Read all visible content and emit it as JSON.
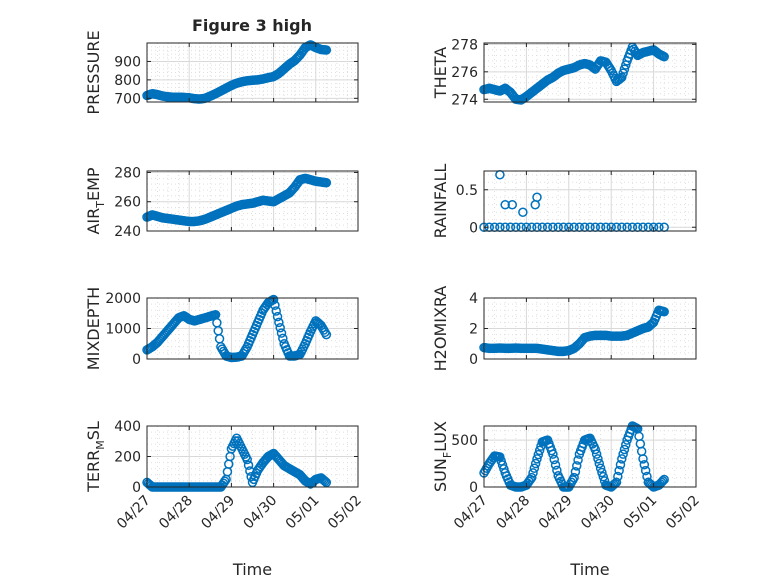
{
  "figure": {
    "title": "Figure 3 high"
  },
  "chart_data": [
    {
      "type": "scatter",
      "ylabel": "PRESSURE",
      "ylim": [
        680,
        1000
      ],
      "yticks": [
        700,
        800,
        900
      ],
      "xlim": [
        "04/27",
        "05/02"
      ],
      "grid": true,
      "marker": "open-circle",
      "color": "#0072BD",
      "x_points": [
        "04/27 00:00",
        "04/27 03:00",
        "04/27 06:00",
        "04/27 09:00",
        "04/27 12:00",
        "04/27 15:00",
        "04/27 18:00",
        "04/27 21:00",
        "04/28 00:00",
        "04/28 03:00",
        "04/28 06:00",
        "04/28 09:00",
        "04/28 12:00",
        "04/28 15:00",
        "04/28 18:00",
        "04/28 21:00",
        "04/29 00:00",
        "04/29 03:00",
        "04/29 06:00",
        "04/29 09:00",
        "04/29 12:00",
        "04/29 15:00",
        "04/29 18:00",
        "04/29 21:00",
        "04/30 00:00",
        "04/30 03:00",
        "04/30 06:00",
        "04/30 09:00",
        "04/30 12:00",
        "04/30 15:00",
        "04/30 18:00",
        "04/30 21:00",
        "05/01 00:00",
        "05/01 03:00",
        "05/01 06:00"
      ],
      "y": [
        715,
        725,
        720,
        712,
        708,
        706,
        706,
        705,
        703,
        698,
        696,
        700,
        712,
        725,
        740,
        755,
        770,
        782,
        790,
        795,
        798,
        800,
        805,
        812,
        818,
        835,
        860,
        885,
        905,
        935,
        975,
        990,
        975,
        965,
        962
      ]
    },
    {
      "type": "scatter",
      "ylabel": "THETA",
      "ylim": [
        273.8,
        278.1
      ],
      "yticks": [
        274,
        276,
        278
      ],
      "xlim": [
        "04/27",
        "05/02"
      ],
      "grid": true,
      "marker": "open-circle",
      "color": "#0072BD",
      "x_points": [
        "04/27 00:00",
        "04/27 03:00",
        "04/27 06:00",
        "04/27 09:00",
        "04/27 12:00",
        "04/27 15:00",
        "04/27 18:00",
        "04/27 21:00",
        "04/28 00:00",
        "04/28 03:00",
        "04/28 06:00",
        "04/28 09:00",
        "04/28 12:00",
        "04/28 15:00",
        "04/28 18:00",
        "04/28 21:00",
        "04/29 00:00",
        "04/29 03:00",
        "04/29 06:00",
        "04/29 09:00",
        "04/29 12:00",
        "04/29 15:00",
        "04/29 18:00",
        "04/29 21:00",
        "04/30 00:00",
        "04/30 03:00",
        "04/30 06:00",
        "04/30 09:00",
        "04/30 12:00",
        "04/30 15:00",
        "04/30 18:00",
        "04/30 21:00",
        "05/01 00:00",
        "05/01 03:00",
        "05/01 06:00"
      ],
      "y": [
        274.7,
        274.8,
        274.7,
        274.6,
        274.8,
        274.5,
        274.0,
        273.95,
        274.2,
        274.5,
        274.8,
        275.1,
        275.4,
        275.6,
        275.9,
        276.1,
        276.2,
        276.3,
        276.5,
        276.6,
        276.5,
        276.2,
        276.8,
        276.7,
        276.1,
        275.3,
        275.6,
        276.8,
        277.8,
        277.2,
        277.4,
        277.5,
        277.6,
        277.3,
        277.1
      ]
    },
    {
      "type": "scatter",
      "ylabel": "AIR_TEMP",
      "ylim": [
        240,
        281
      ],
      "yticks": [
        240,
        260,
        280
      ],
      "xlim": [
        "04/27",
        "05/02"
      ],
      "grid": true,
      "marker": "open-circle",
      "color": "#0072BD",
      "x_points": [
        "04/27 00:00",
        "04/27 03:00",
        "04/27 06:00",
        "04/27 09:00",
        "04/27 12:00",
        "04/27 15:00",
        "04/27 18:00",
        "04/27 21:00",
        "04/28 00:00",
        "04/28 03:00",
        "04/28 06:00",
        "04/28 09:00",
        "04/28 12:00",
        "04/28 15:00",
        "04/28 18:00",
        "04/28 21:00",
        "04/29 00:00",
        "04/29 03:00",
        "04/29 06:00",
        "04/29 09:00",
        "04/29 12:00",
        "04/29 15:00",
        "04/29 18:00",
        "04/29 21:00",
        "04/30 00:00",
        "04/30 03:00",
        "04/30 06:00",
        "04/30 09:00",
        "04/30 12:00",
        "04/30 15:00",
        "04/30 18:00",
        "04/30 21:00",
        "05/01 00:00",
        "05/01 03:00",
        "05/01 06:00"
      ],
      "y": [
        249.5,
        251,
        250,
        249,
        248.5,
        248,
        247.5,
        247,
        246.5,
        246.5,
        247,
        248,
        249.5,
        251,
        252.5,
        254,
        255.5,
        257,
        258,
        258.5,
        259,
        260,
        261,
        260.5,
        260,
        262,
        264,
        266,
        270,
        275,
        276,
        275,
        274,
        273.5,
        273
      ]
    },
    {
      "type": "scatter",
      "ylabel": "RAINFALL",
      "ylim": [
        -0.05,
        0.75
      ],
      "yticks": [
        0,
        0.5
      ],
      "xlim": [
        "04/27",
        "05/02"
      ],
      "grid": true,
      "marker": "open-circle",
      "color": "#0072BD",
      "x_points": [
        "04/27 00:00",
        "04/27 06:00",
        "04/27 12:00",
        "04/27 18:00",
        "04/28 00:00",
        "04/28 06:00",
        "04/28 12:00",
        "04/28 18:00",
        "04/29 00:00",
        "04/29 06:00",
        "04/29 12:00",
        "04/29 18:00",
        "04/30 00:00",
        "04/30 06:00",
        "04/30 12:00",
        "04/30 18:00",
        "05/01 00:00",
        "05/01 06:00",
        "04/27 09:00",
        "04/27 12:00",
        "04/27 16:00",
        "04/27 22:00",
        "04/28 05:00",
        "04/28 06:00"
      ],
      "y": [
        0,
        0,
        0,
        0,
        0,
        0,
        0,
        0,
        0,
        0,
        0,
        0,
        0,
        0,
        0,
        0,
        0,
        0,
        0.7,
        0.3,
        0.3,
        0.2,
        0.3,
        0.4
      ]
    },
    {
      "type": "scatter",
      "ylabel": "MIXDEPTH",
      "ylim": [
        0,
        2000
      ],
      "yticks": [
        0,
        1000,
        2000
      ],
      "xlim": [
        "04/27",
        "05/02"
      ],
      "grid": true,
      "marker": "open-circle",
      "color": "#0072BD",
      "x_points": [
        "04/27 00:00",
        "04/27 03:00",
        "04/27 06:00",
        "04/27 09:00",
        "04/27 12:00",
        "04/27 15:00",
        "04/27 18:00",
        "04/27 21:00",
        "04/28 00:00",
        "04/28 03:00",
        "04/28 06:00",
        "04/28 09:00",
        "04/28 12:00",
        "04/28 15:00",
        "04/28 18:00",
        "04/28 21:00",
        "04/29 00:00",
        "04/29 03:00",
        "04/29 06:00",
        "04/29 09:00",
        "04/29 12:00",
        "04/29 15:00",
        "04/29 18:00",
        "04/29 21:00",
        "04/30 00:00",
        "04/30 03:00",
        "04/30 06:00",
        "04/30 09:00",
        "04/30 12:00",
        "04/30 15:00",
        "04/30 18:00",
        "04/30 21:00",
        "05/01 00:00",
        "05/01 03:00",
        "05/01 06:00"
      ],
      "y": [
        300,
        400,
        550,
        750,
        950,
        1150,
        1350,
        1420,
        1300,
        1250,
        1300,
        1350,
        1400,
        1450,
        400,
        100,
        50,
        60,
        100,
        400,
        800,
        1200,
        1600,
        1850,
        1950,
        1200,
        500,
        100,
        100,
        150,
        500,
        900,
        1250,
        1100,
        800
      ]
    },
    {
      "type": "scatter",
      "ylabel": "H2OMIXRA",
      "ylim": [
        0,
        4
      ],
      "yticks": [
        0,
        2,
        4
      ],
      "xlim": [
        "04/27",
        "05/02"
      ],
      "grid": true,
      "marker": "open-circle",
      "color": "#0072BD",
      "x_points": [
        "04/27 00:00",
        "04/27 03:00",
        "04/27 06:00",
        "04/27 09:00",
        "04/27 12:00",
        "04/27 15:00",
        "04/27 18:00",
        "04/27 21:00",
        "04/28 00:00",
        "04/28 03:00",
        "04/28 06:00",
        "04/28 09:00",
        "04/28 12:00",
        "04/28 15:00",
        "04/28 18:00",
        "04/28 21:00",
        "04/29 00:00",
        "04/29 03:00",
        "04/29 06:00",
        "04/29 09:00",
        "04/29 12:00",
        "04/29 15:00",
        "04/29 18:00",
        "04/29 21:00",
        "04/30 00:00",
        "04/30 03:00",
        "04/30 06:00",
        "04/30 09:00",
        "04/30 12:00",
        "04/30 15:00",
        "04/30 18:00",
        "04/30 21:00",
        "05/01 00:00",
        "05/01 03:00",
        "05/01 06:00"
      ],
      "y": [
        0.75,
        0.7,
        0.7,
        0.72,
        0.7,
        0.7,
        0.72,
        0.7,
        0.7,
        0.7,
        0.7,
        0.65,
        0.6,
        0.55,
        0.5,
        0.5,
        0.55,
        0.7,
        1.0,
        1.4,
        1.5,
        1.55,
        1.55,
        1.55,
        1.5,
        1.5,
        1.5,
        1.55,
        1.7,
        1.85,
        2.0,
        2.1,
        2.4,
        3.2,
        3.1
      ]
    },
    {
      "type": "scatter",
      "ylabel": "TERR_MSL",
      "ylim": [
        0,
        400
      ],
      "yticks": [
        0,
        200,
        400
      ],
      "xlim": [
        "04/27",
        "05/02"
      ],
      "grid": true,
      "marker": "open-circle",
      "color": "#0072BD",
      "x_points": [
        "04/27 00:00",
        "04/27 03:00",
        "04/27 06:00",
        "04/27 09:00",
        "04/27 12:00",
        "04/27 15:00",
        "04/27 18:00",
        "04/27 21:00",
        "04/28 00:00",
        "04/28 03:00",
        "04/28 06:00",
        "04/28 09:00",
        "04/28 12:00",
        "04/28 15:00",
        "04/28 18:00",
        "04/28 21:00",
        "04/29 00:00",
        "04/29 03:00",
        "04/29 06:00",
        "04/29 09:00",
        "04/29 12:00",
        "04/29 15:00",
        "04/29 18:00",
        "04/29 21:00",
        "04/30 00:00",
        "04/30 03:00",
        "04/30 06:00",
        "04/30 09:00",
        "04/30 12:00",
        "04/30 15:00",
        "04/30 18:00",
        "04/30 21:00",
        "05/01 00:00",
        "05/01 03:00",
        "05/01 06:00"
      ],
      "y": [
        30,
        0,
        0,
        0,
        0,
        0,
        0,
        0,
        0,
        0,
        0,
        0,
        0,
        0,
        0,
        50,
        250,
        320,
        250,
        180,
        30,
        110,
        160,
        200,
        220,
        180,
        140,
        120,
        100,
        80,
        40,
        20,
        50,
        60,
        30
      ]
    },
    {
      "type": "scatter",
      "ylabel": "SUN_FLUX",
      "ylim": [
        0,
        650
      ],
      "yticks": [
        0,
        500
      ],
      "xlim": [
        "04/27",
        "05/02"
      ],
      "grid": true,
      "marker": "open-circle",
      "color": "#0072BD",
      "x_points": [
        "04/27 00:00",
        "04/27 03:00",
        "04/27 06:00",
        "04/27 09:00",
        "04/27 12:00",
        "04/27 15:00",
        "04/27 18:00",
        "04/27 21:00",
        "04/28 00:00",
        "04/28 03:00",
        "04/28 06:00",
        "04/28 09:00",
        "04/28 12:00",
        "04/28 15:00",
        "04/28 18:00",
        "04/28 21:00",
        "04/29 00:00",
        "04/29 03:00",
        "04/29 06:00",
        "04/29 09:00",
        "04/29 12:00",
        "04/29 15:00",
        "04/29 18:00",
        "04/29 21:00",
        "04/30 00:00",
        "04/30 03:00",
        "04/30 06:00",
        "04/30 09:00",
        "04/30 12:00",
        "04/30 15:00",
        "04/30 18:00",
        "04/30 21:00",
        "05/01 00:00",
        "05/01 03:00",
        "05/01 06:00"
      ],
      "y": [
        150,
        250,
        330,
        320,
        150,
        20,
        0,
        0,
        20,
        100,
        300,
        480,
        500,
        350,
        120,
        0,
        0,
        100,
        350,
        500,
        520,
        400,
        200,
        20,
        0,
        50,
        300,
        500,
        650,
        620,
        300,
        50,
        0,
        20,
        80
      ]
    }
  ],
  "x_axis": {
    "label": "Time",
    "tick_labels": [
      "04/27",
      "04/28",
      "04/29",
      "04/30",
      "05/01",
      "05/02"
    ]
  },
  "panel_labels": [
    {
      "base": "PRESSURE",
      "sub": "",
      "rest": ""
    },
    {
      "base": "THETA",
      "sub": "",
      "rest": ""
    },
    {
      "base": "AIR",
      "sub": "T",
      "rest": "EMP"
    },
    {
      "base": "RAINFALL",
      "sub": "",
      "rest": ""
    },
    {
      "base": "MIXDEPTH",
      "sub": "",
      "rest": ""
    },
    {
      "base": "H2OMIXRA",
      "sub": "",
      "rest": ""
    },
    {
      "base": "TERR",
      "sub": "M",
      "rest": "SL"
    },
    {
      "base": "SUN",
      "sub": "F",
      "rest": "LUX"
    }
  ],
  "colors": {
    "marker": "#0072BD",
    "axis": "#262626",
    "grid": "#dfdfdf",
    "background": "#ffffff"
  }
}
